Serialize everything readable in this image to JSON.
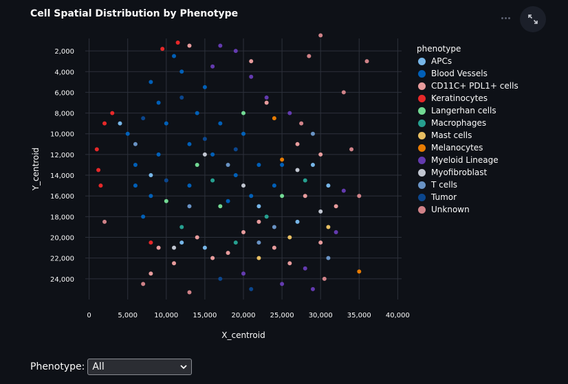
{
  "header": {
    "title": "Cell Spatial Distribution by Phenotype"
  },
  "toolbar": {
    "more_icon": "more-horizontal-icon",
    "expand_icon": "fullscreen-expand-icon"
  },
  "filter": {
    "label": "Phenotype:",
    "selected": "All",
    "dropdown_icon": "chevron-down-icon"
  },
  "chart_data": {
    "type": "scatter",
    "title": "Cell Spatial Distribution by Phenotype",
    "xlabel": "X_centroid",
    "ylabel": "Y_centroid",
    "xlim": [
      -500,
      40500
    ],
    "ylim": [
      26000,
      800
    ],
    "y_reversed": true,
    "x_ticks": [
      0,
      5000,
      10000,
      15000,
      20000,
      25000,
      30000,
      35000,
      40000
    ],
    "x_tick_labels": [
      "0",
      "5,000",
      "10,000",
      "15,000",
      "20,000",
      "25,000",
      "30,000",
      "35,000",
      "40,000"
    ],
    "y_ticks": [
      2000,
      4000,
      6000,
      8000,
      10000,
      12000,
      14000,
      16000,
      18000,
      20000,
      22000,
      24000
    ],
    "y_tick_labels": [
      "2,000",
      "4,000",
      "6,000",
      "8,000",
      "10,000",
      "12,000",
      "14,000",
      "16,000",
      "18,000",
      "20,000",
      "22,000",
      "24,000"
    ],
    "grid": true,
    "legend": {
      "title": "phenotype",
      "placement": "right"
    },
    "series": [
      {
        "name": "APCs",
        "color": "#83c9ff",
        "points": [
          [
            4000,
            9000
          ],
          [
            8000,
            14000
          ],
          [
            22000,
            17000
          ],
          [
            27000,
            18500
          ],
          [
            29000,
            13000
          ],
          [
            15000,
            21000
          ],
          [
            12000,
            20500
          ],
          [
            31000,
            15000
          ]
        ]
      },
      {
        "name": "Blood Vessels",
        "color": "#0068c9",
        "points": [
          [
            5000,
            10000
          ],
          [
            6000,
            13000
          ],
          [
            8000,
            16000
          ],
          [
            9000,
            7000
          ],
          [
            12000,
            4000
          ],
          [
            14000,
            8000
          ],
          [
            16000,
            12000
          ],
          [
            19000,
            14000
          ],
          [
            22000,
            13000
          ],
          [
            10000,
            9000
          ],
          [
            13000,
            15000
          ],
          [
            7000,
            18000
          ],
          [
            18000,
            16500
          ],
          [
            24000,
            15000
          ],
          [
            11000,
            2500
          ],
          [
            15000,
            5500
          ],
          [
            20000,
            10000
          ],
          [
            9000,
            12000
          ],
          [
            17000,
            9000
          ],
          [
            6000,
            15000
          ],
          [
            25000,
            13000
          ],
          [
            21000,
            16000
          ],
          [
            13000,
            11000
          ],
          [
            8000,
            5000
          ]
        ]
      },
      {
        "name": "CD11C+ PDL1+ cells",
        "color": "#ffabab",
        "points": [
          [
            9000,
            21000
          ],
          [
            11000,
            22500
          ],
          [
            14000,
            20000
          ],
          [
            16000,
            22000
          ],
          [
            20000,
            19500
          ],
          [
            24000,
            21000
          ],
          [
            28000,
            16000
          ],
          [
            30000,
            12000
          ],
          [
            32000,
            17000
          ],
          [
            26000,
            22500
          ],
          [
            18000,
            21500
          ],
          [
            13000,
            1500
          ],
          [
            21000,
            3000
          ],
          [
            23000,
            7000
          ],
          [
            8000,
            23500
          ],
          [
            30000,
            20500
          ],
          [
            27000,
            11000
          ],
          [
            22000,
            18500
          ]
        ]
      },
      {
        "name": "Keratinocytes",
        "color": "#ff2b2b",
        "points": [
          [
            1000,
            11500
          ],
          [
            1200,
            13500
          ],
          [
            2000,
            9000
          ],
          [
            3000,
            8000
          ],
          [
            8000,
            20500
          ],
          [
            9500,
            1800
          ],
          [
            11500,
            1200
          ],
          [
            1500,
            15000
          ]
        ]
      },
      {
        "name": "Langerhan cells",
        "color": "#7defa1",
        "points": [
          [
            14000,
            13000
          ],
          [
            17000,
            17000
          ],
          [
            25000,
            16000
          ],
          [
            20000,
            8000
          ],
          [
            10000,
            16500
          ]
        ]
      },
      {
        "name": "Macrophages",
        "color": "#29b09d",
        "points": [
          [
            16000,
            14500
          ],
          [
            23000,
            18000
          ],
          [
            12000,
            19000
          ],
          [
            28000,
            14500
          ],
          [
            19000,
            20500
          ]
        ]
      },
      {
        "name": "Mast cells",
        "color": "#ffd16a",
        "points": [
          [
            26000,
            20000
          ],
          [
            22000,
            22000
          ],
          [
            31000,
            19000
          ]
        ]
      },
      {
        "name": "Melanocytes",
        "color": "#ff8700",
        "points": [
          [
            25000,
            12500
          ],
          [
            35000,
            23300
          ],
          [
            24000,
            8500
          ]
        ]
      },
      {
        "name": "Myeloid Lineage",
        "color": "#6d3fc0",
        "points": [
          [
            17000,
            1500
          ],
          [
            19000,
            2000
          ],
          [
            21000,
            4500
          ],
          [
            23000,
            6500
          ],
          [
            16000,
            3500
          ],
          [
            20000,
            23500
          ],
          [
            25000,
            24500
          ],
          [
            28000,
            23000
          ],
          [
            32000,
            19500
          ],
          [
            26000,
            8000
          ],
          [
            29000,
            25000
          ],
          [
            33000,
            15500
          ]
        ]
      },
      {
        "name": "Myofibroblast",
        "color": "#d5dae5",
        "points": [
          [
            15000,
            12000
          ],
          [
            27000,
            13500
          ],
          [
            11000,
            21000
          ],
          [
            20000,
            15000
          ],
          [
            30000,
            17500
          ]
        ]
      },
      {
        "name": "T cells",
        "color": "#73a2d8",
        "points": [
          [
            6000,
            11000
          ],
          [
            18000,
            13000
          ],
          [
            24000,
            19000
          ],
          [
            29000,
            10000
          ],
          [
            13000,
            17000
          ],
          [
            22000,
            20500
          ],
          [
            31000,
            22000
          ]
        ]
      },
      {
        "name": "Tumor",
        "color": "#0b4c9a",
        "points": [
          [
            7000,
            8500
          ],
          [
            12000,
            6500
          ],
          [
            15000,
            10500
          ],
          [
            19000,
            11500
          ],
          [
            10000,
            14500
          ],
          [
            21000,
            25000
          ],
          [
            17000,
            24000
          ]
        ]
      },
      {
        "name": "Unknown",
        "color": "#e58f95",
        "points": [
          [
            30000,
            500
          ],
          [
            28500,
            2500
          ],
          [
            33000,
            6000
          ],
          [
            36000,
            3000
          ],
          [
            27500,
            9000
          ],
          [
            34000,
            11500
          ],
          [
            35000,
            16000
          ],
          [
            2000,
            18500
          ],
          [
            7000,
            24500
          ],
          [
            13000,
            25300
          ],
          [
            30500,
            24000
          ]
        ]
      }
    ]
  }
}
